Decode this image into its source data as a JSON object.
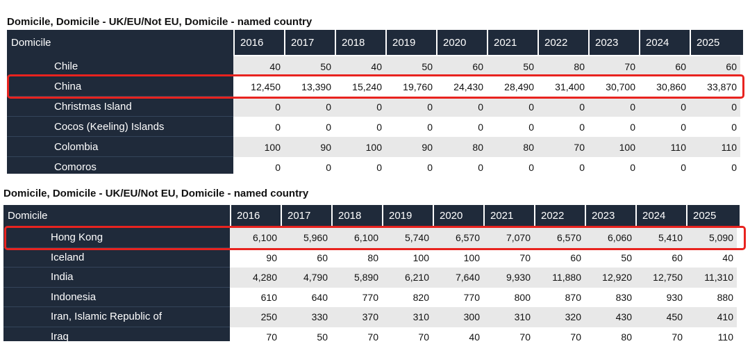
{
  "colors": {
    "header_bg": "#1f2a3a",
    "highlight": "#e8231f",
    "alt_row": "#e8e8e8"
  },
  "top_table": {
    "title": "Domicile, Domicile - UK/EU/Not EU, Domicile - named country",
    "header": {
      "label": "Domicile",
      "years": [
        "2016",
        "2017",
        "2018",
        "2019",
        "2020",
        "2021",
        "2022",
        "2023",
        "2024",
        "2025"
      ]
    },
    "rows": [
      {
        "name": "Chile",
        "values": [
          "40",
          "50",
          "40",
          "50",
          "60",
          "50",
          "80",
          "70",
          "60",
          "60"
        ],
        "highlighted": false
      },
      {
        "name": "China",
        "values": [
          "12,450",
          "13,390",
          "15,240",
          "19,760",
          "24,430",
          "28,490",
          "31,400",
          "30,700",
          "30,860",
          "33,870"
        ],
        "highlighted": true
      },
      {
        "name": "Christmas Island",
        "values": [
          "0",
          "0",
          "0",
          "0",
          "0",
          "0",
          "0",
          "0",
          "0",
          "0"
        ],
        "highlighted": false
      },
      {
        "name": "Cocos (Keeling) Islands",
        "values": [
          "0",
          "0",
          "0",
          "0",
          "0",
          "0",
          "0",
          "0",
          "0",
          "0"
        ],
        "highlighted": false
      },
      {
        "name": "Colombia",
        "values": [
          "100",
          "90",
          "100",
          "90",
          "80",
          "80",
          "70",
          "100",
          "110",
          "110"
        ],
        "highlighted": false
      },
      {
        "name": "Comoros",
        "values": [
          "0",
          "0",
          "0",
          "0",
          "0",
          "0",
          "0",
          "0",
          "0",
          "0"
        ],
        "highlighted": false
      }
    ]
  },
  "bottom_table": {
    "title": "Domicile, Domicile - UK/EU/Not EU, Domicile - named country",
    "header": {
      "label": "Domicile",
      "years": [
        "2016",
        "2017",
        "2018",
        "2019",
        "2020",
        "2021",
        "2022",
        "2023",
        "2024",
        "2025"
      ]
    },
    "rows": [
      {
        "name": "Hong Kong",
        "values": [
          "6,100",
          "5,960",
          "6,100",
          "5,740",
          "6,570",
          "7,070",
          "6,570",
          "6,060",
          "5,410",
          "5,090"
        ],
        "highlighted": true
      },
      {
        "name": "Iceland",
        "values": [
          "90",
          "60",
          "80",
          "100",
          "100",
          "70",
          "60",
          "50",
          "60",
          "40"
        ],
        "highlighted": false
      },
      {
        "name": "India",
        "values": [
          "4,280",
          "4,790",
          "5,890",
          "6,210",
          "7,640",
          "9,930",
          "11,880",
          "12,920",
          "12,750",
          "11,310"
        ],
        "highlighted": false
      },
      {
        "name": "Indonesia",
        "values": [
          "610",
          "640",
          "770",
          "820",
          "770",
          "800",
          "870",
          "830",
          "930",
          "880"
        ],
        "highlighted": false
      },
      {
        "name": "Iran, Islamic Republic of",
        "values": [
          "250",
          "330",
          "370",
          "310",
          "300",
          "310",
          "320",
          "430",
          "450",
          "410"
        ],
        "highlighted": false
      },
      {
        "name": "Iraq",
        "values": [
          "70",
          "50",
          "70",
          "70",
          "40",
          "70",
          "70",
          "80",
          "70",
          "110"
        ],
        "highlighted": false
      }
    ]
  }
}
